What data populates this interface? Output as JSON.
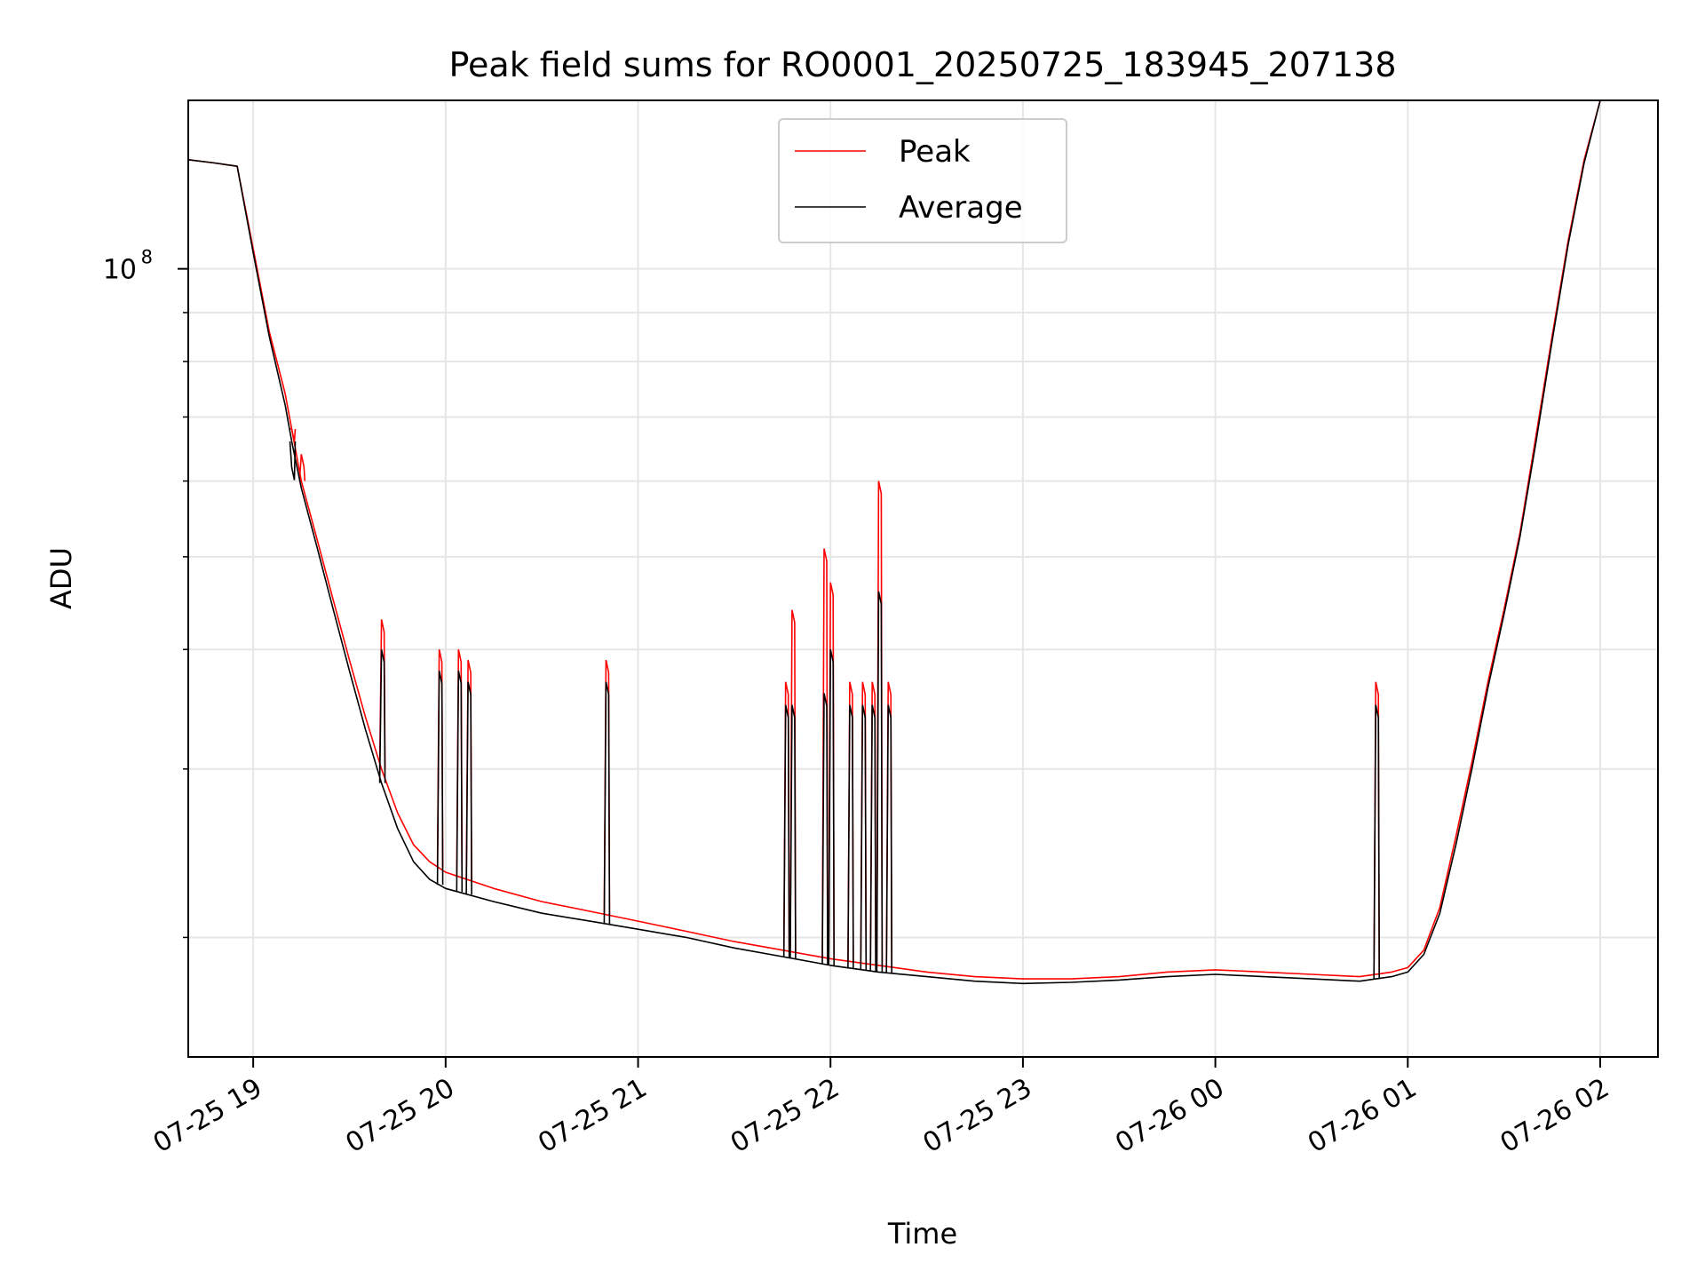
{
  "chart_data": {
    "type": "line",
    "title": "Peak field sums for RO0001_20250725_183945_207138",
    "xlabel": "Time",
    "ylabel": "ADU",
    "y_scale": "log",
    "ylim": [
      15000000,
      150000000
    ],
    "xlim": [
      "2025-07-25 18:39:45",
      "2025-07-26 02:18:00"
    ],
    "grid": true,
    "legend_position": "upper center",
    "x_ticks": [
      {
        "t": "2025-07-25 19:00",
        "label": "07-25 19"
      },
      {
        "t": "2025-07-25 20:00",
        "label": "07-25 20"
      },
      {
        "t": "2025-07-25 21:00",
        "label": "07-25 21"
      },
      {
        "t": "2025-07-25 22:00",
        "label": "07-25 22"
      },
      {
        "t": "2025-07-25 23:00",
        "label": "07-25 23"
      },
      {
        "t": "2025-07-26 00:00",
        "label": "07-26 00"
      },
      {
        "t": "2025-07-26 01:00",
        "label": "07-26 01"
      },
      {
        "t": "2025-07-26 02:00",
        "label": "07-26 02"
      }
    ],
    "y_major_ticks": [
      {
        "value": 100000000,
        "base": "10",
        "exp": "8"
      }
    ],
    "y_minor_ticks": [
      20000000,
      30000000,
      40000000,
      50000000,
      60000000,
      70000000,
      80000000,
      90000000
    ],
    "series": [
      {
        "name": "Peak",
        "color": "#ff0000",
        "points": [
          [
            "2025-07-25 18:40",
            130000000
          ],
          [
            "2025-07-25 18:48",
            129000000
          ],
          [
            "2025-07-25 18:55",
            128000000
          ],
          [
            "2025-07-25 19:00",
            105000000
          ],
          [
            "2025-07-25 19:05",
            86000000
          ],
          [
            "2025-07-25 19:10",
            74000000
          ],
          [
            "2025-07-25 19:12",
            68000000
          ],
          [
            "2025-07-25 19:15",
            60000000
          ],
          [
            "2025-07-25 19:20",
            52000000
          ],
          [
            "2025-07-25 19:25",
            45000000
          ],
          [
            "2025-07-25 19:30",
            39000000
          ],
          [
            "2025-07-25 19:35",
            34000000
          ],
          [
            "2025-07-25 19:40",
            30000000
          ],
          [
            "2025-07-25 19:45",
            27000000
          ],
          [
            "2025-07-25 19:50",
            25000000
          ],
          [
            "2025-07-25 19:55",
            24000000
          ],
          [
            "2025-07-25 20:00",
            23400000
          ],
          [
            "2025-07-25 20:15",
            22500000
          ],
          [
            "2025-07-25 20:30",
            21800000
          ],
          [
            "2025-07-25 20:45",
            21300000
          ],
          [
            "2025-07-25 21:00",
            20800000
          ],
          [
            "2025-07-25 21:15",
            20300000
          ],
          [
            "2025-07-25 21:30",
            19800000
          ],
          [
            "2025-07-25 21:45",
            19400000
          ],
          [
            "2025-07-25 22:00",
            19000000
          ],
          [
            "2025-07-25 22:15",
            18700000
          ],
          [
            "2025-07-25 22:30",
            18400000
          ],
          [
            "2025-07-25 22:45",
            18200000
          ],
          [
            "2025-07-25 23:00",
            18100000
          ],
          [
            "2025-07-25 23:15",
            18100000
          ],
          [
            "2025-07-25 23:30",
            18200000
          ],
          [
            "2025-07-25 23:45",
            18400000
          ],
          [
            "2025-07-26 00:00",
            18500000
          ],
          [
            "2025-07-26 00:15",
            18400000
          ],
          [
            "2025-07-26 00:30",
            18300000
          ],
          [
            "2025-07-26 00:45",
            18200000
          ],
          [
            "2025-07-26 00:55",
            18400000
          ],
          [
            "2025-07-26 01:00",
            18600000
          ],
          [
            "2025-07-26 01:05",
            19400000
          ],
          [
            "2025-07-26 01:10",
            21500000
          ],
          [
            "2025-07-26 01:15",
            25500000
          ],
          [
            "2025-07-26 01:20",
            30500000
          ],
          [
            "2025-07-26 01:25",
            37000000
          ],
          [
            "2025-07-26 01:30",
            44000000
          ],
          [
            "2025-07-26 01:35",
            53000000
          ],
          [
            "2025-07-26 01:40",
            67000000
          ],
          [
            "2025-07-26 01:45",
            85000000
          ],
          [
            "2025-07-26 01:50",
            107000000
          ],
          [
            "2025-07-26 01:55",
            130000000
          ],
          [
            "2025-07-26 02:00",
            150000000
          ]
        ],
        "spikes": [
          [
            "2025-07-25 19:12",
            68000000
          ],
          [
            "2025-07-25 19:15",
            64000000
          ],
          [
            "2025-07-25 19:40",
            43000000
          ],
          [
            "2025-07-25 19:58",
            40000000
          ],
          [
            "2025-07-25 20:04",
            40000000
          ],
          [
            "2025-07-25 20:07",
            39000000
          ],
          [
            "2025-07-25 20:50",
            39000000
          ],
          [
            "2025-07-25 21:46",
            37000000
          ],
          [
            "2025-07-25 21:48",
            44000000
          ],
          [
            "2025-07-25 21:58",
            51000000
          ],
          [
            "2025-07-25 22:00",
            47000000
          ],
          [
            "2025-07-25 22:06",
            37000000
          ],
          [
            "2025-07-25 22:10",
            37000000
          ],
          [
            "2025-07-25 22:13",
            37000000
          ],
          [
            "2025-07-25 22:15",
            60000000
          ],
          [
            "2025-07-25 22:18",
            37000000
          ],
          [
            "2025-07-26 00:50",
            37000000
          ]
        ]
      },
      {
        "name": "Average",
        "color": "#000000",
        "points": [
          [
            "2025-07-25 18:40",
            130000000
          ],
          [
            "2025-07-25 18:48",
            129000000
          ],
          [
            "2025-07-25 18:55",
            128000000
          ],
          [
            "2025-07-25 19:00",
            104000000
          ],
          [
            "2025-07-25 19:05",
            85000000
          ],
          [
            "2025-07-25 19:10",
            72000000
          ],
          [
            "2025-07-25 19:12",
            66000000
          ],
          [
            "2025-07-25 19:15",
            59000000
          ],
          [
            "2025-07-25 19:20",
            51000000
          ],
          [
            "2025-07-25 19:25",
            44000000
          ],
          [
            "2025-07-25 19:30",
            38000000
          ],
          [
            "2025-07-25 19:35",
            33000000
          ],
          [
            "2025-07-25 19:40",
            29000000
          ],
          [
            "2025-07-25 19:45",
            26000000
          ],
          [
            "2025-07-25 19:50",
            24000000
          ],
          [
            "2025-07-25 19:55",
            23000000
          ],
          [
            "2025-07-25 20:00",
            22500000
          ],
          [
            "2025-07-25 20:15",
            21800000
          ],
          [
            "2025-07-25 20:30",
            21200000
          ],
          [
            "2025-07-25 20:45",
            20800000
          ],
          [
            "2025-07-25 21:00",
            20400000
          ],
          [
            "2025-07-25 21:15",
            20000000
          ],
          [
            "2025-07-25 21:30",
            19500000
          ],
          [
            "2025-07-25 21:45",
            19100000
          ],
          [
            "2025-07-25 22:00",
            18700000
          ],
          [
            "2025-07-25 22:15",
            18400000
          ],
          [
            "2025-07-25 22:30",
            18200000
          ],
          [
            "2025-07-25 22:45",
            18000000
          ],
          [
            "2025-07-25 23:00",
            17900000
          ],
          [
            "2025-07-25 23:15",
            17950000
          ],
          [
            "2025-07-25 23:30",
            18050000
          ],
          [
            "2025-07-25 23:45",
            18200000
          ],
          [
            "2025-07-26 00:00",
            18300000
          ],
          [
            "2025-07-26 00:15",
            18200000
          ],
          [
            "2025-07-26 00:30",
            18100000
          ],
          [
            "2025-07-26 00:45",
            18000000
          ],
          [
            "2025-07-26 00:55",
            18200000
          ],
          [
            "2025-07-26 01:00",
            18400000
          ],
          [
            "2025-07-26 01:05",
            19200000
          ],
          [
            "2025-07-26 01:10",
            21200000
          ],
          [
            "2025-07-26 01:15",
            25000000
          ],
          [
            "2025-07-26 01:20",
            30000000
          ],
          [
            "2025-07-26 01:25",
            36500000
          ],
          [
            "2025-07-26 01:30",
            43500000
          ],
          [
            "2025-07-26 01:35",
            52500000
          ],
          [
            "2025-07-26 01:40",
            66000000
          ],
          [
            "2025-07-26 01:45",
            84000000
          ],
          [
            "2025-07-26 01:50",
            106000000
          ],
          [
            "2025-07-26 01:55",
            129000000
          ],
          [
            "2025-07-26 02:00",
            150000000
          ]
        ],
        "spikes": [
          [
            "2025-07-25 19:12",
            62000000
          ],
          [
            "2025-07-25 19:40",
            40000000
          ],
          [
            "2025-07-25 19:58",
            38000000
          ],
          [
            "2025-07-25 20:04",
            38000000
          ],
          [
            "2025-07-25 20:07",
            37000000
          ],
          [
            "2025-07-25 20:50",
            37000000
          ],
          [
            "2025-07-25 21:46",
            35000000
          ],
          [
            "2025-07-25 21:48",
            35000000
          ],
          [
            "2025-07-25 21:58",
            36000000
          ],
          [
            "2025-07-25 22:00",
            40000000
          ],
          [
            "2025-07-25 22:06",
            35000000
          ],
          [
            "2025-07-25 22:10",
            35000000
          ],
          [
            "2025-07-25 22:13",
            35000000
          ],
          [
            "2025-07-25 22:15",
            46000000
          ],
          [
            "2025-07-25 22:18",
            35000000
          ],
          [
            "2025-07-26 00:50",
            35000000
          ]
        ]
      }
    ]
  }
}
